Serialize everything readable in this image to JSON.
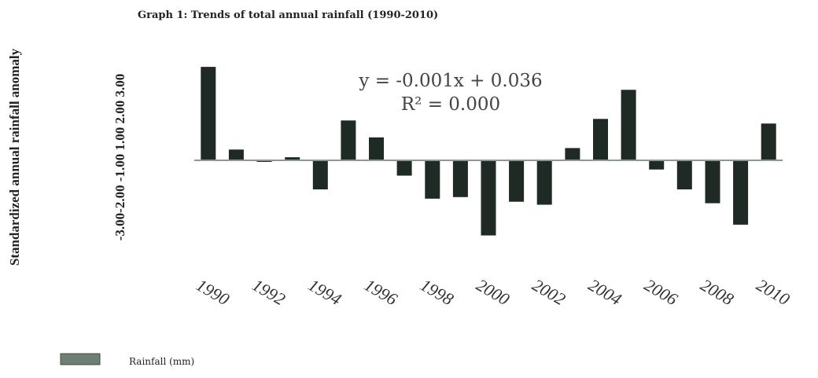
{
  "chart_data": {
    "type": "bar",
    "title": "Graph 1: Trends of total annual rainfall (1990-2010)",
    "xlabel": "",
    "ylabel": "Standardized annual rainfall anomaly",
    "y_tick_labels_text": "-3.00-2.00 -1.00 1.00 2.00 3.00",
    "ylim": [
      -3,
      3
    ],
    "x_tick_labels": [
      "1990",
      "1992",
      "1994",
      "1996",
      "1998",
      "2000",
      "2002",
      "2004",
      "2006",
      "2008",
      "2010"
    ],
    "categories": [
      "1990",
      "1991",
      "1992",
      "1993",
      "1994",
      "1995",
      "1996",
      "1997",
      "1998",
      "1999",
      "2000",
      "2001",
      "2002",
      "2003",
      "2004",
      "2005",
      "2006",
      "2007",
      "2008",
      "2009",
      "2010"
    ],
    "series": [
      {
        "name": "Rainfall (mm)",
        "values": [
          3.05,
          0.35,
          -0.05,
          0.1,
          -0.95,
          1.3,
          0.75,
          -0.5,
          -1.25,
          -1.2,
          -2.45,
          -1.35,
          -1.45,
          0.4,
          1.35,
          2.3,
          -0.3,
          -0.95,
          -1.4,
          -2.1,
          1.2
        ]
      }
    ],
    "trendline": {
      "equation": "y = -0.001x + 0.036",
      "r_squared": "R² = 0.000"
    },
    "legend": {
      "position": "bottom-left",
      "label": "Rainfall (mm)"
    },
    "colors": {
      "bar": "#1f2a24",
      "axis": "#8a9a90",
      "legend_swatch": "#6f7f74"
    },
    "grid": false
  }
}
